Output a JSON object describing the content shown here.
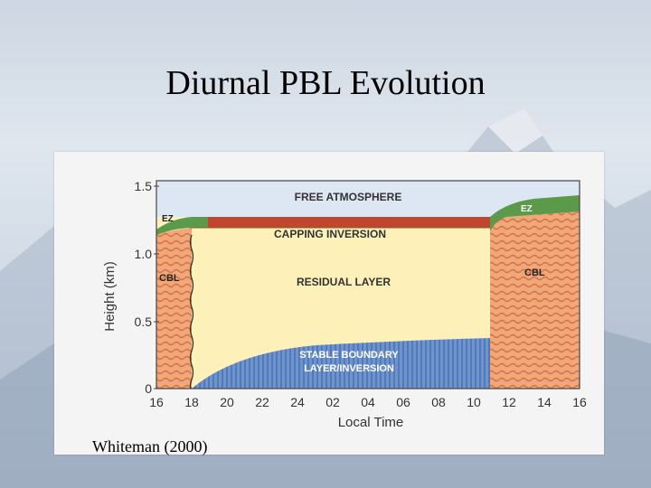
{
  "slide": {
    "title": "Diurnal PBL Evolution",
    "credit": "Whiteman (2000)"
  },
  "diagram": {
    "y_axis_label": "Height (km)",
    "x_axis_label": "Local Time",
    "y_ticks": [
      "1.5",
      "1.0",
      "0.5",
      "0"
    ],
    "x_ticks": [
      "16",
      "18",
      "20",
      "22",
      "24",
      "02",
      "04",
      "06",
      "08",
      "10",
      "12",
      "14",
      "16"
    ],
    "labels": {
      "free_atmosphere": "FREE ATMOSPHERE",
      "capping_inversion": "CAPPING INVERSION",
      "residual_layer": "RESIDUAL LAYER",
      "stable_line1": "STABLE BOUNDARY",
      "stable_line2": "LAYER/INVERSION",
      "ez_left": "EZ",
      "ez_right": "EZ",
      "cbl_left": "CBL",
      "cbl_right": "CBL"
    },
    "colors": {
      "free_atmosphere": "#dde6f3",
      "capping_inversion": "#c0462d",
      "entrainment_zone": "#5a9a4a",
      "residual_layer": "#fdf0b8",
      "stable_layer": "#5f86c4",
      "cbl": "#f0a878"
    }
  }
}
